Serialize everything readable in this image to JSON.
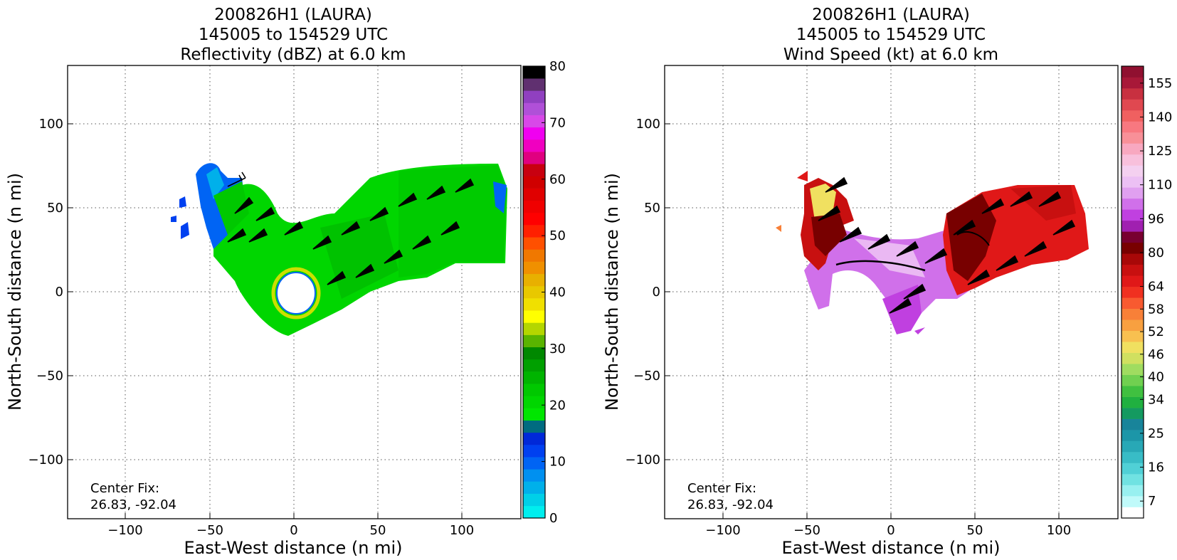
{
  "chart_data": [
    {
      "type": "heatmap",
      "title_lines": [
        "200826H1 (LAURA)",
        "145005 to 154529 UTC",
        "Reflectivity (dBZ) at 6.0 km"
      ],
      "xlabel": "East-West distance (n mi)",
      "ylabel": "North-South distance (n mi)",
      "xlim": [
        -135,
        135
      ],
      "ylim": [
        -135,
        135
      ],
      "xticks": [
        "−100",
        "−50",
        "0",
        "50",
        "100"
      ],
      "xtick_values": [
        -100,
        -50,
        0,
        50,
        100
      ],
      "yticks": [
        "−100",
        "−50",
        "0",
        "50",
        "100"
      ],
      "ytick_values": [
        -100,
        -50,
        0,
        50,
        100
      ],
      "grid": true,
      "annotation": [
        "Center Fix:",
        "26.83, -92.04"
      ],
      "colorbar": {
        "min": 0,
        "max": 80,
        "tick_labels": [
          "0",
          "10",
          "20",
          "30",
          "40",
          "50",
          "60",
          "70",
          "80"
        ],
        "tick_values": [
          0,
          10,
          20,
          30,
          40,
          50,
          60,
          70,
          80
        ],
        "colors": [
          "#00eeee",
          "#00d0e8",
          "#00b0ea",
          "#0090f0",
          "#0064f4",
          "#0040f0",
          "#0028d8",
          "#006b80",
          "#00e600",
          "#00d600",
          "#00c800",
          "#00b400",
          "#00a000",
          "#008800",
          "#5ab400",
          "#b4d600",
          "#ffff00",
          "#f0e000",
          "#e8c800",
          "#e8b000",
          "#f09000",
          "#f07800",
          "#ff5000",
          "#ff2000",
          "#ff0000",
          "#f00000",
          "#e00000",
          "#d00000",
          "#c80010",
          "#e00080",
          "#f000c0",
          "#f000f0",
          "#d848e8",
          "#b050d8",
          "#9040c0",
          "#603070",
          "#000000"
        ]
      }
    },
    {
      "type": "heatmap",
      "title_lines": [
        "200826H1 (LAURA)",
        "145005 to 154529 UTC",
        "Wind Speed (kt) at 6.0 km"
      ],
      "xlabel": "East-West distance (n mi)",
      "ylabel": "North-South distance (n mi)",
      "xlim": [
        -135,
        135
      ],
      "ylim": [
        -135,
        135
      ],
      "xticks": [
        "−100",
        "−50",
        "0",
        "50",
        "100"
      ],
      "xtick_values": [
        -100,
        -50,
        0,
        50,
        100
      ],
      "yticks": [
        "−100",
        "−50",
        "0",
        "50",
        "100"
      ],
      "ytick_values": [
        -100,
        -50,
        0,
        50,
        100
      ],
      "grid": true,
      "annotation": [
        "Center Fix:",
        "26.83, -92.04"
      ],
      "colorbar": {
        "tick_labels": [
          "7",
          "16",
          "25",
          "34",
          "40",
          "46",
          "52",
          "58",
          "64",
          "80",
          "96",
          "110",
          "125",
          "140",
          "155"
        ],
        "tick_levels": [
          1,
          4,
          7,
          10,
          12,
          14,
          16,
          18,
          20,
          23,
          26,
          29,
          32,
          35,
          38
        ],
        "levels": 40,
        "colors": [
          "#ffffff",
          "#c0fafa",
          "#98f0f0",
          "#70e2e2",
          "#50d0d6",
          "#38bcc6",
          "#28a8b6",
          "#1c96a8",
          "#18849a",
          "#149a60",
          "#20b040",
          "#40c040",
          "#70d050",
          "#a0dc60",
          "#d0e060",
          "#f0e060",
          "#f8c050",
          "#f8a040",
          "#f88038",
          "#f85a30",
          "#f03020",
          "#e01818",
          "#c81010",
          "#a80808",
          "#780000",
          "#780030",
          "#a020b0",
          "#c040e0",
          "#d070ea",
          "#e0a0f0",
          "#ecc0f4",
          "#f4d0f0",
          "#f8c0dc",
          "#f8a8c0",
          "#f89098",
          "#f87880",
          "#f06060",
          "#e04850",
          "#c83040",
          "#a81838",
          "#901030"
        ]
      }
    }
  ]
}
